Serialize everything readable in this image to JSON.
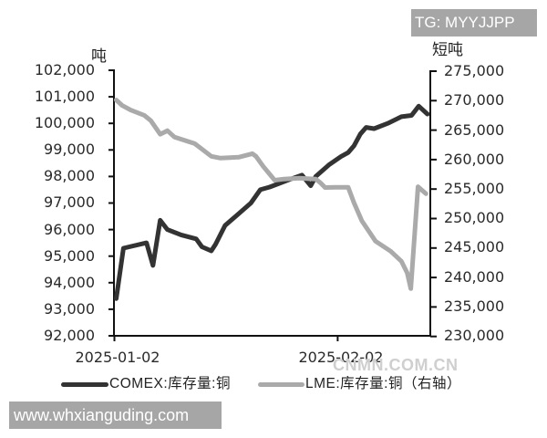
{
  "watermarks": {
    "tg": "TG: MYYJJPP",
    "site": "www.whxianguding.com",
    "source": "CNMN.COM.CN"
  },
  "chart_data": {
    "type": "line",
    "title": "",
    "xlabel": "",
    "ylabel": "吨",
    "ylabel_right": "短吨",
    "grid": false,
    "x_unit": "days from 2025-01-02",
    "x_tick_labels": [
      "2025-01-02",
      "2025-02-02"
    ],
    "x_tick_positions": [
      0,
      31
    ],
    "xlim": [
      -0.3,
      43.6
    ],
    "ylim": [
      92000,
      102000
    ],
    "ylim_right": [
      230000,
      275000
    ],
    "y_ticks": [
      "102,000",
      "101,000",
      "100,000",
      "99,000",
      "98,000",
      "97,000",
      "96,000",
      "95,000",
      "94,000",
      "93,000",
      "92,000"
    ],
    "y_ticks_right": [
      "275,000",
      "270,000",
      "265,000",
      "260,000",
      "255,000",
      "250,000",
      "245,000",
      "240,000",
      "235,000",
      "230,000"
    ],
    "legend": {
      "position": "bottom",
      "entries": [
        "COMEX:库存量:铜",
        "LME:库存量:铜（右轴）"
      ]
    },
    "series": [
      {
        "name": "COMEX:库存量:铜",
        "axis": "left",
        "color": "#333333",
        "points": [
          [
            0,
            93400
          ],
          [
            1.0,
            95300
          ],
          [
            4.2,
            95500
          ],
          [
            5.1,
            94650
          ],
          [
            6.1,
            96350
          ],
          [
            7.1,
            96000
          ],
          [
            9.0,
            95800
          ],
          [
            11.1,
            95650
          ],
          [
            11.9,
            95350
          ],
          [
            13.2,
            95200
          ],
          [
            13.8,
            95450
          ],
          [
            15.1,
            96150
          ],
          [
            16.6,
            96500
          ],
          [
            18.7,
            97000
          ],
          [
            20.0,
            97500
          ],
          [
            21.3,
            97600
          ],
          [
            24.2,
            97900
          ],
          [
            25.8,
            98050
          ],
          [
            27.0,
            97650
          ],
          [
            27.7,
            98000
          ],
          [
            29.6,
            98450
          ],
          [
            31.2,
            98750
          ],
          [
            32.2,
            98900
          ],
          [
            33.0,
            99150
          ],
          [
            33.9,
            99600
          ],
          [
            34.7,
            99850
          ],
          [
            35.8,
            99800
          ],
          [
            37.7,
            100000
          ],
          [
            39.6,
            100250
          ],
          [
            41.0,
            100300
          ],
          [
            42.0,
            100650
          ],
          [
            43.2,
            100350
          ]
        ]
      },
      {
        "name": "LME:库存量:铜（右轴）",
        "axis": "right",
        "color": "#aaaaaa",
        "points": [
          [
            0,
            270000
          ],
          [
            0.8,
            269100
          ],
          [
            2.0,
            268300
          ],
          [
            3.9,
            267400
          ],
          [
            4.8,
            266500
          ],
          [
            6.1,
            264200
          ],
          [
            7.1,
            264800
          ],
          [
            8.1,
            263700
          ],
          [
            10.9,
            262600
          ],
          [
            13.2,
            260450
          ],
          [
            14.4,
            260150
          ],
          [
            17.0,
            260300
          ],
          [
            18.9,
            260900
          ],
          [
            19.4,
            260450
          ],
          [
            20.4,
            258750
          ],
          [
            22.0,
            256400
          ],
          [
            23.3,
            256600
          ],
          [
            25.4,
            256750
          ],
          [
            27.7,
            256600
          ],
          [
            28.4,
            255900
          ],
          [
            29.0,
            255150
          ],
          [
            30.5,
            255200
          ],
          [
            32.2,
            255200
          ],
          [
            33.0,
            252600
          ],
          [
            34.1,
            249500
          ],
          [
            36.0,
            246050
          ],
          [
            38.1,
            244350
          ],
          [
            39.6,
            242650
          ],
          [
            40.4,
            240650
          ],
          [
            40.9,
            238000
          ],
          [
            41.9,
            255300
          ],
          [
            43.0,
            254100
          ]
        ]
      }
    ]
  }
}
